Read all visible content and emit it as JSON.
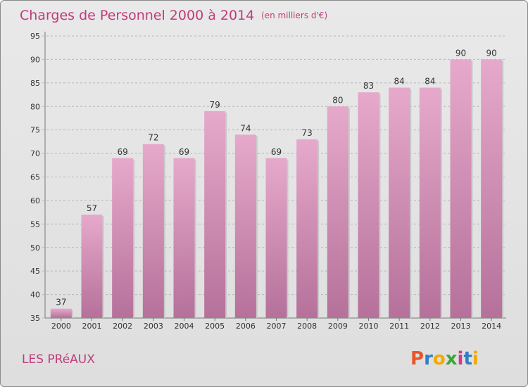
{
  "chart_data": {
    "type": "bar",
    "title": "Charges de Personnel 2000 à 2014",
    "subtitle": "(en milliers d'€)",
    "xlabel": "",
    "ylabel": "",
    "categories": [
      "2000",
      "2001",
      "2002",
      "2003",
      "2004",
      "2005",
      "2006",
      "2007",
      "2008",
      "2009",
      "2010",
      "2011",
      "2012",
      "2013",
      "2014"
    ],
    "values": [
      37,
      57,
      69,
      72,
      69,
      79,
      74,
      69,
      73,
      80,
      83,
      84,
      84,
      90,
      90
    ],
    "ylim": [
      35,
      95
    ],
    "yticks": [
      35,
      40,
      45,
      50,
      55,
      60,
      65,
      70,
      75,
      80,
      85,
      90,
      95
    ],
    "grid": true,
    "legend": "none",
    "colors": {
      "bar_top": "#e6a9cb",
      "bar_bottom": "#b5719a",
      "title": "#c03c7a",
      "grid": "#b8b8b8"
    }
  },
  "footer": {
    "commune": "LES PRéAUX",
    "brand": "Proxiti",
    "brand_colors": [
      "#e8562a",
      "#2f7fc6",
      "#f2a900",
      "#3aa63a",
      "#d6388a",
      "#2f7fc6",
      "#f2a900"
    ]
  }
}
